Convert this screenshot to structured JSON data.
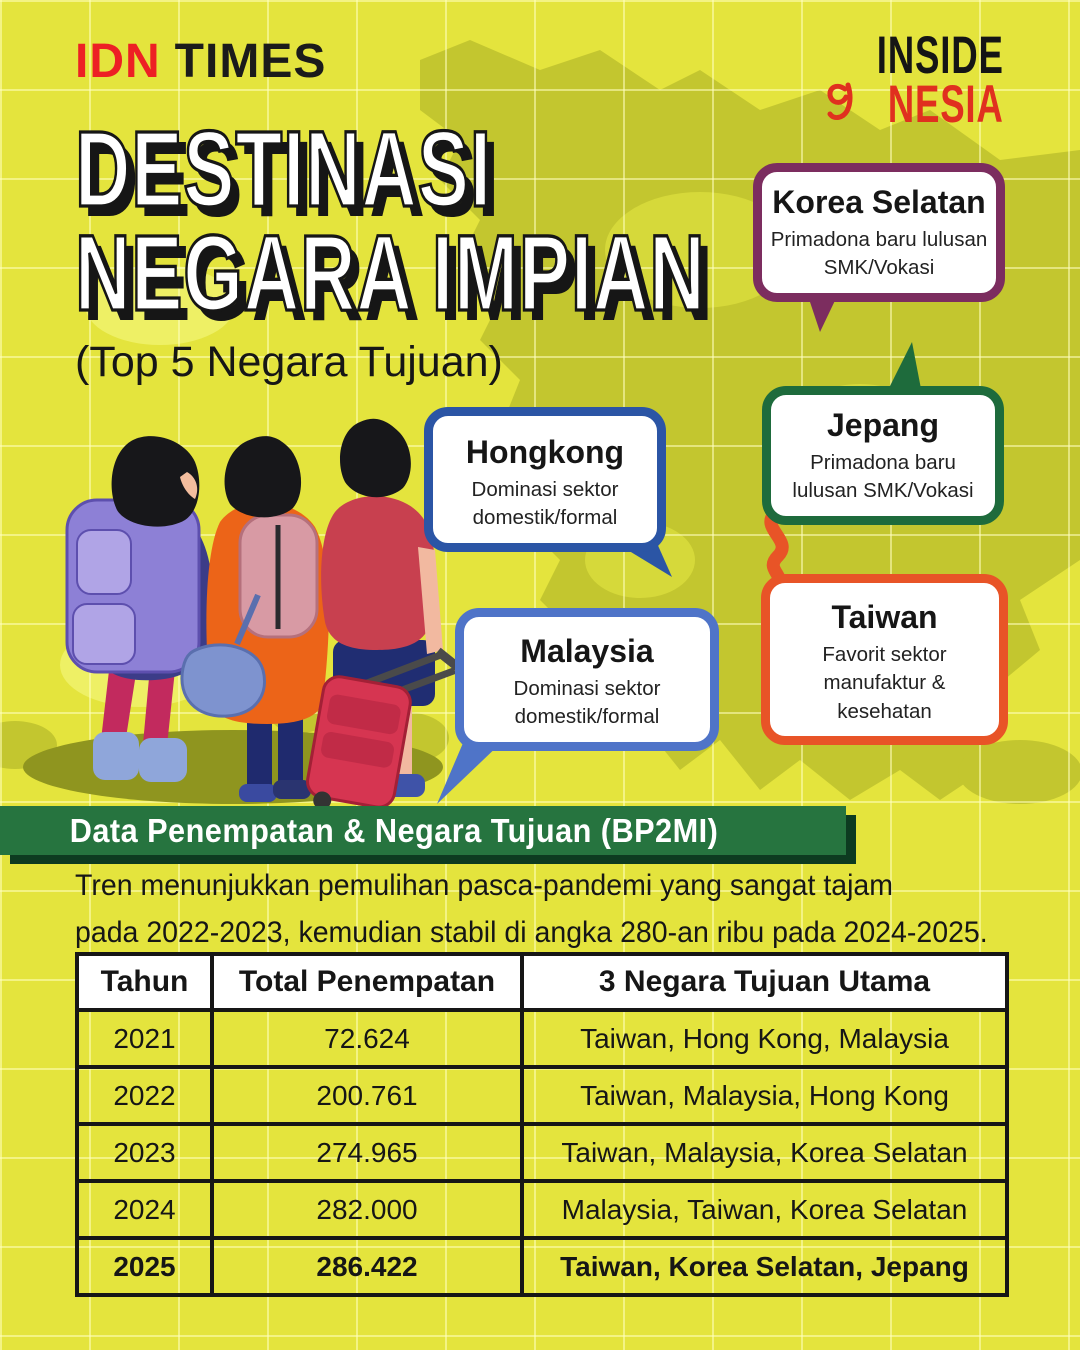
{
  "header": {
    "brand_idn": "IDN",
    "brand_times": "TIMES",
    "inside": "INSIDE",
    "nesia": "NESIA"
  },
  "title": {
    "line1": "DESTINASI",
    "line2": "NEGARA IMPIAN",
    "subtitle": "(Top 5 Negara Tujuan)"
  },
  "callouts": [
    {
      "id": "korea-selatan",
      "title": "Korea Selatan",
      "desc": "Primadona baru lulusan SMK/Vokasi",
      "border": "#7c2d5f"
    },
    {
      "id": "jepang",
      "title": "Jepang",
      "desc": "Primadona baru lulusan SMK/Vokasi",
      "border": "#1e6b3c"
    },
    {
      "id": "hongkong",
      "title": "Hongkong",
      "desc": "Dominasi sektor domestik/formal",
      "border": "#2b55a5"
    },
    {
      "id": "malaysia",
      "title": "Malaysia",
      "desc": "Dominasi sektor domestik/formal",
      "border": "#4f74c8"
    },
    {
      "id": "taiwan",
      "title": "Taiwan",
      "desc": "Favorit sektor manufaktur & kesehatan",
      "border": "#e85427"
    }
  ],
  "section": {
    "banner": "Data Penempatan & Negara Tujuan (BP2MI)",
    "paragraph_line1": "Tren menunjukkan pemulihan pasca-pandemi yang sangat tajam",
    "paragraph_line2": "pada 2022-2023, kemudian stabil di angka 280-an ribu pada 2024-2025."
  },
  "table": {
    "headers": [
      "Tahun",
      "Total Penempatan",
      "3 Negara Tujuan Utama"
    ],
    "rows": [
      {
        "tahun": "2021",
        "total": "72.624",
        "negara": "Taiwan, Hong Kong, Malaysia",
        "bold": false
      },
      {
        "tahun": "2022",
        "total": "200.761",
        "negara": "Taiwan, Malaysia, Hong Kong",
        "bold": false
      },
      {
        "tahun": "2023",
        "total": "274.965",
        "negara": "Taiwan, Malaysia, Korea Selatan",
        "bold": false
      },
      {
        "tahun": "2024",
        "total": "282.000",
        "negara": "Malaysia, Taiwan, Korea Selatan",
        "bold": false
      },
      {
        "tahun": "2025",
        "total": "286.422",
        "negara": "Taiwan, Korea Selatan, Jepang",
        "bold": true
      }
    ]
  },
  "colors": {
    "background": "#e4e43d",
    "map_olive": "#c3c62f",
    "banner_green": "#26743f",
    "banner_shadow": "#0d3b20",
    "idn_red": "#ed2024",
    "nesia_red": "#e0301f",
    "title_fill": "#ffffff",
    "title_outline": "#161616"
  }
}
